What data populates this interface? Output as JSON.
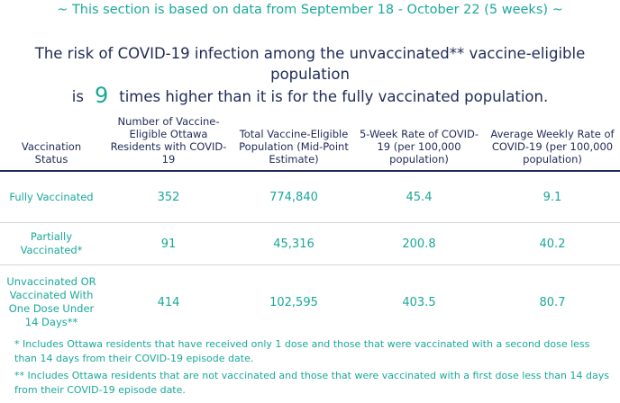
{
  "section_note": "~ This section is based on data from September 18 - October 22 (5 weeks) ~",
  "risk_statement": {
    "line1": "The risk of COVID-19 infection among the unvaccinated** vaccine-eligible population",
    "line2_prefix": "is",
    "multiplier": "9",
    "line2_suffix": "times higher than it is for the fully vaccinated population."
  },
  "table": {
    "headers": [
      "Vaccination Status",
      "Number of Vaccine-Eligible Ottawa Residents with COVID-19",
      "Total Vaccine-Eligible Population (Mid-Point Estimate)",
      "5-Week Rate of COVID-19 (per 100,000 population)",
      "Average Weekly Rate of COVID-19 (per 100,000 population)"
    ],
    "rows": [
      {
        "status": "Fully Vaccinated",
        "cases": "352",
        "population": "774,840",
        "rate_5wk": "45.4",
        "rate_weekly": "9.1"
      },
      {
        "status": "Partially Vaccinated*",
        "cases": "91",
        "population": "45,316",
        "rate_5wk": "200.8",
        "rate_weekly": "40.2"
      },
      {
        "status": "Unvaccinated OR Vaccinated With One Dose Under 14 Days**",
        "cases": "414",
        "population": "102,595",
        "rate_5wk": "403.5",
        "rate_weekly": "80.7"
      }
    ]
  },
  "footnotes": [
    "* Includes Ottawa residents that have received only 1 dose and those that were vaccinated with a second dose less than 14 days from their COVID-19 episode date.",
    "** Includes Ottawa residents that are not vaccinated and those that were vaccinated with a first dose less than 14 days from their COVID-19 episode date."
  ]
}
